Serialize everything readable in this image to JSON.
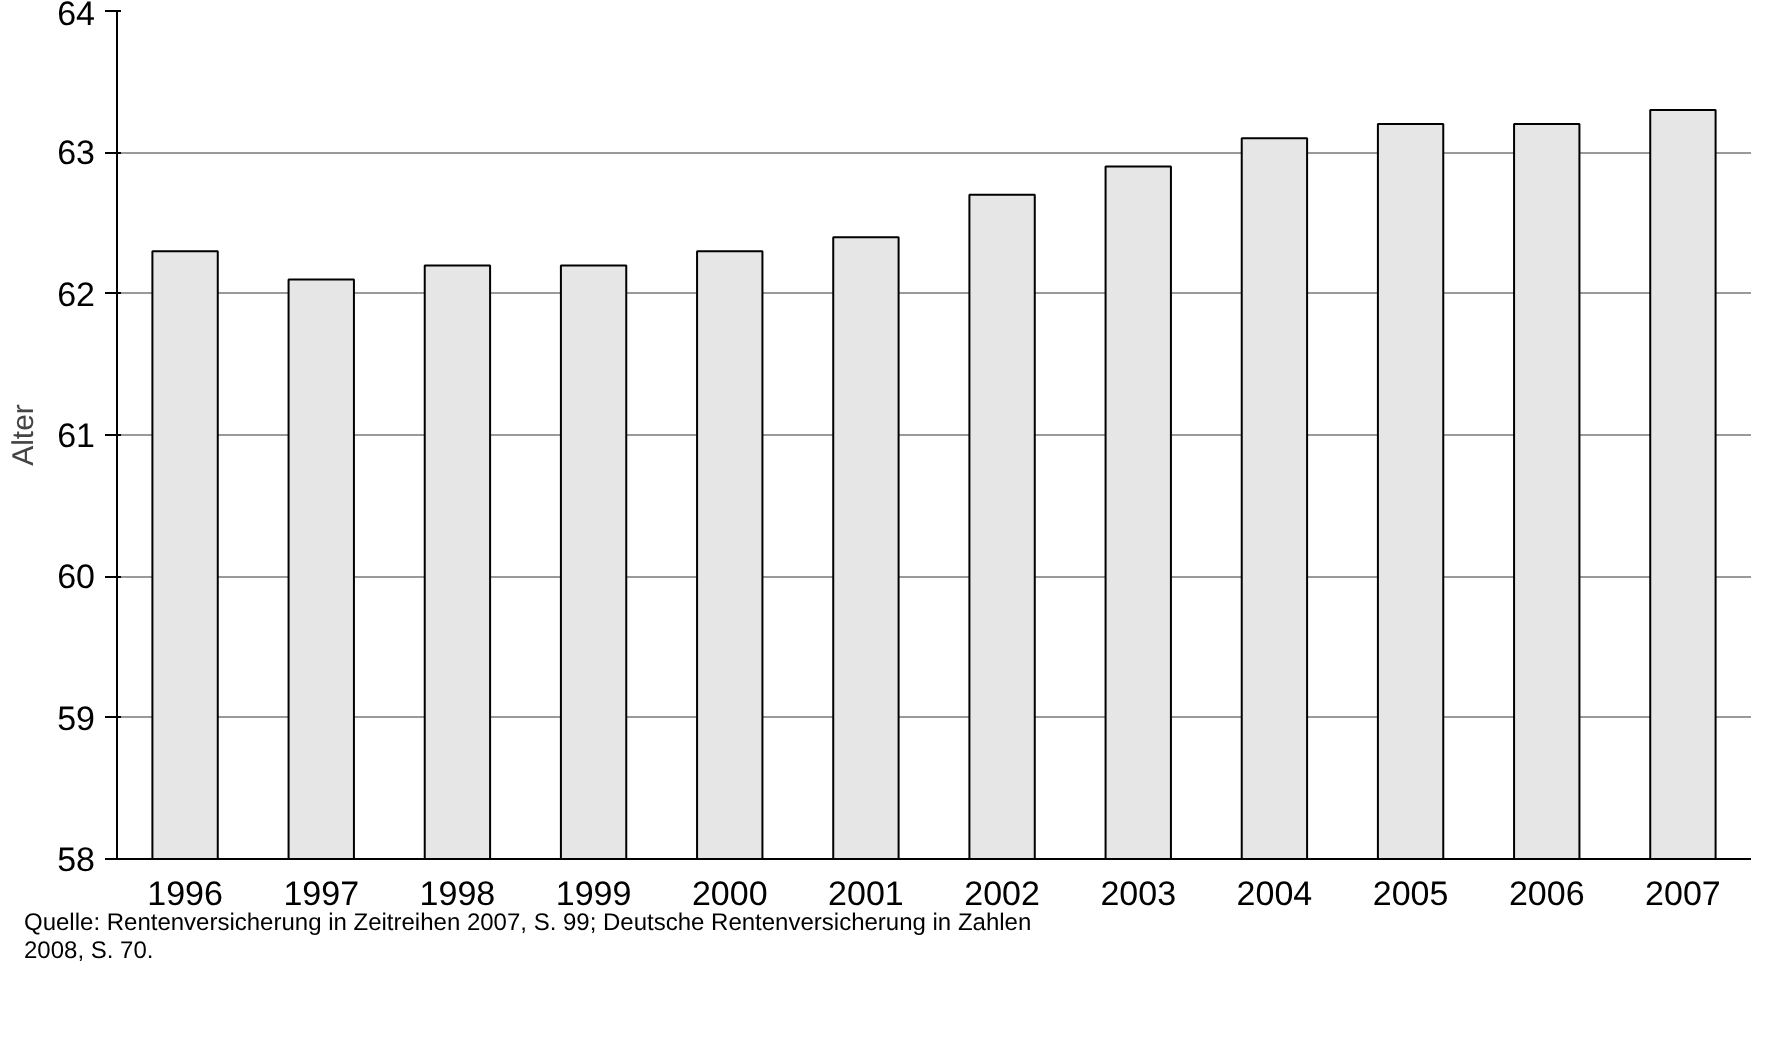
{
  "chart_data": {
    "type": "bar",
    "ylabel": "Alter",
    "categories": [
      "1996",
      "1997",
      "1998",
      "1999",
      "2000",
      "2001",
      "2002",
      "2003",
      "2004",
      "2005",
      "2006",
      "2007"
    ],
    "values": [
      62.3,
      62.1,
      62.2,
      62.2,
      62.3,
      62.4,
      62.7,
      62.9,
      63.1,
      63.2,
      63.2,
      63.3
    ],
    "color": "#e6e6e6",
    "ylim": [
      58,
      64
    ],
    "yticks": [
      58,
      59,
      60,
      61,
      62,
      63,
      64
    ],
    "grid": "y",
    "annotations": [
      "Quelle: Rentenversicherung in Zeitreihen 2007, S. 99; Deutsche Rentenversicherung in Zahlen 2008, S. 70."
    ]
  }
}
